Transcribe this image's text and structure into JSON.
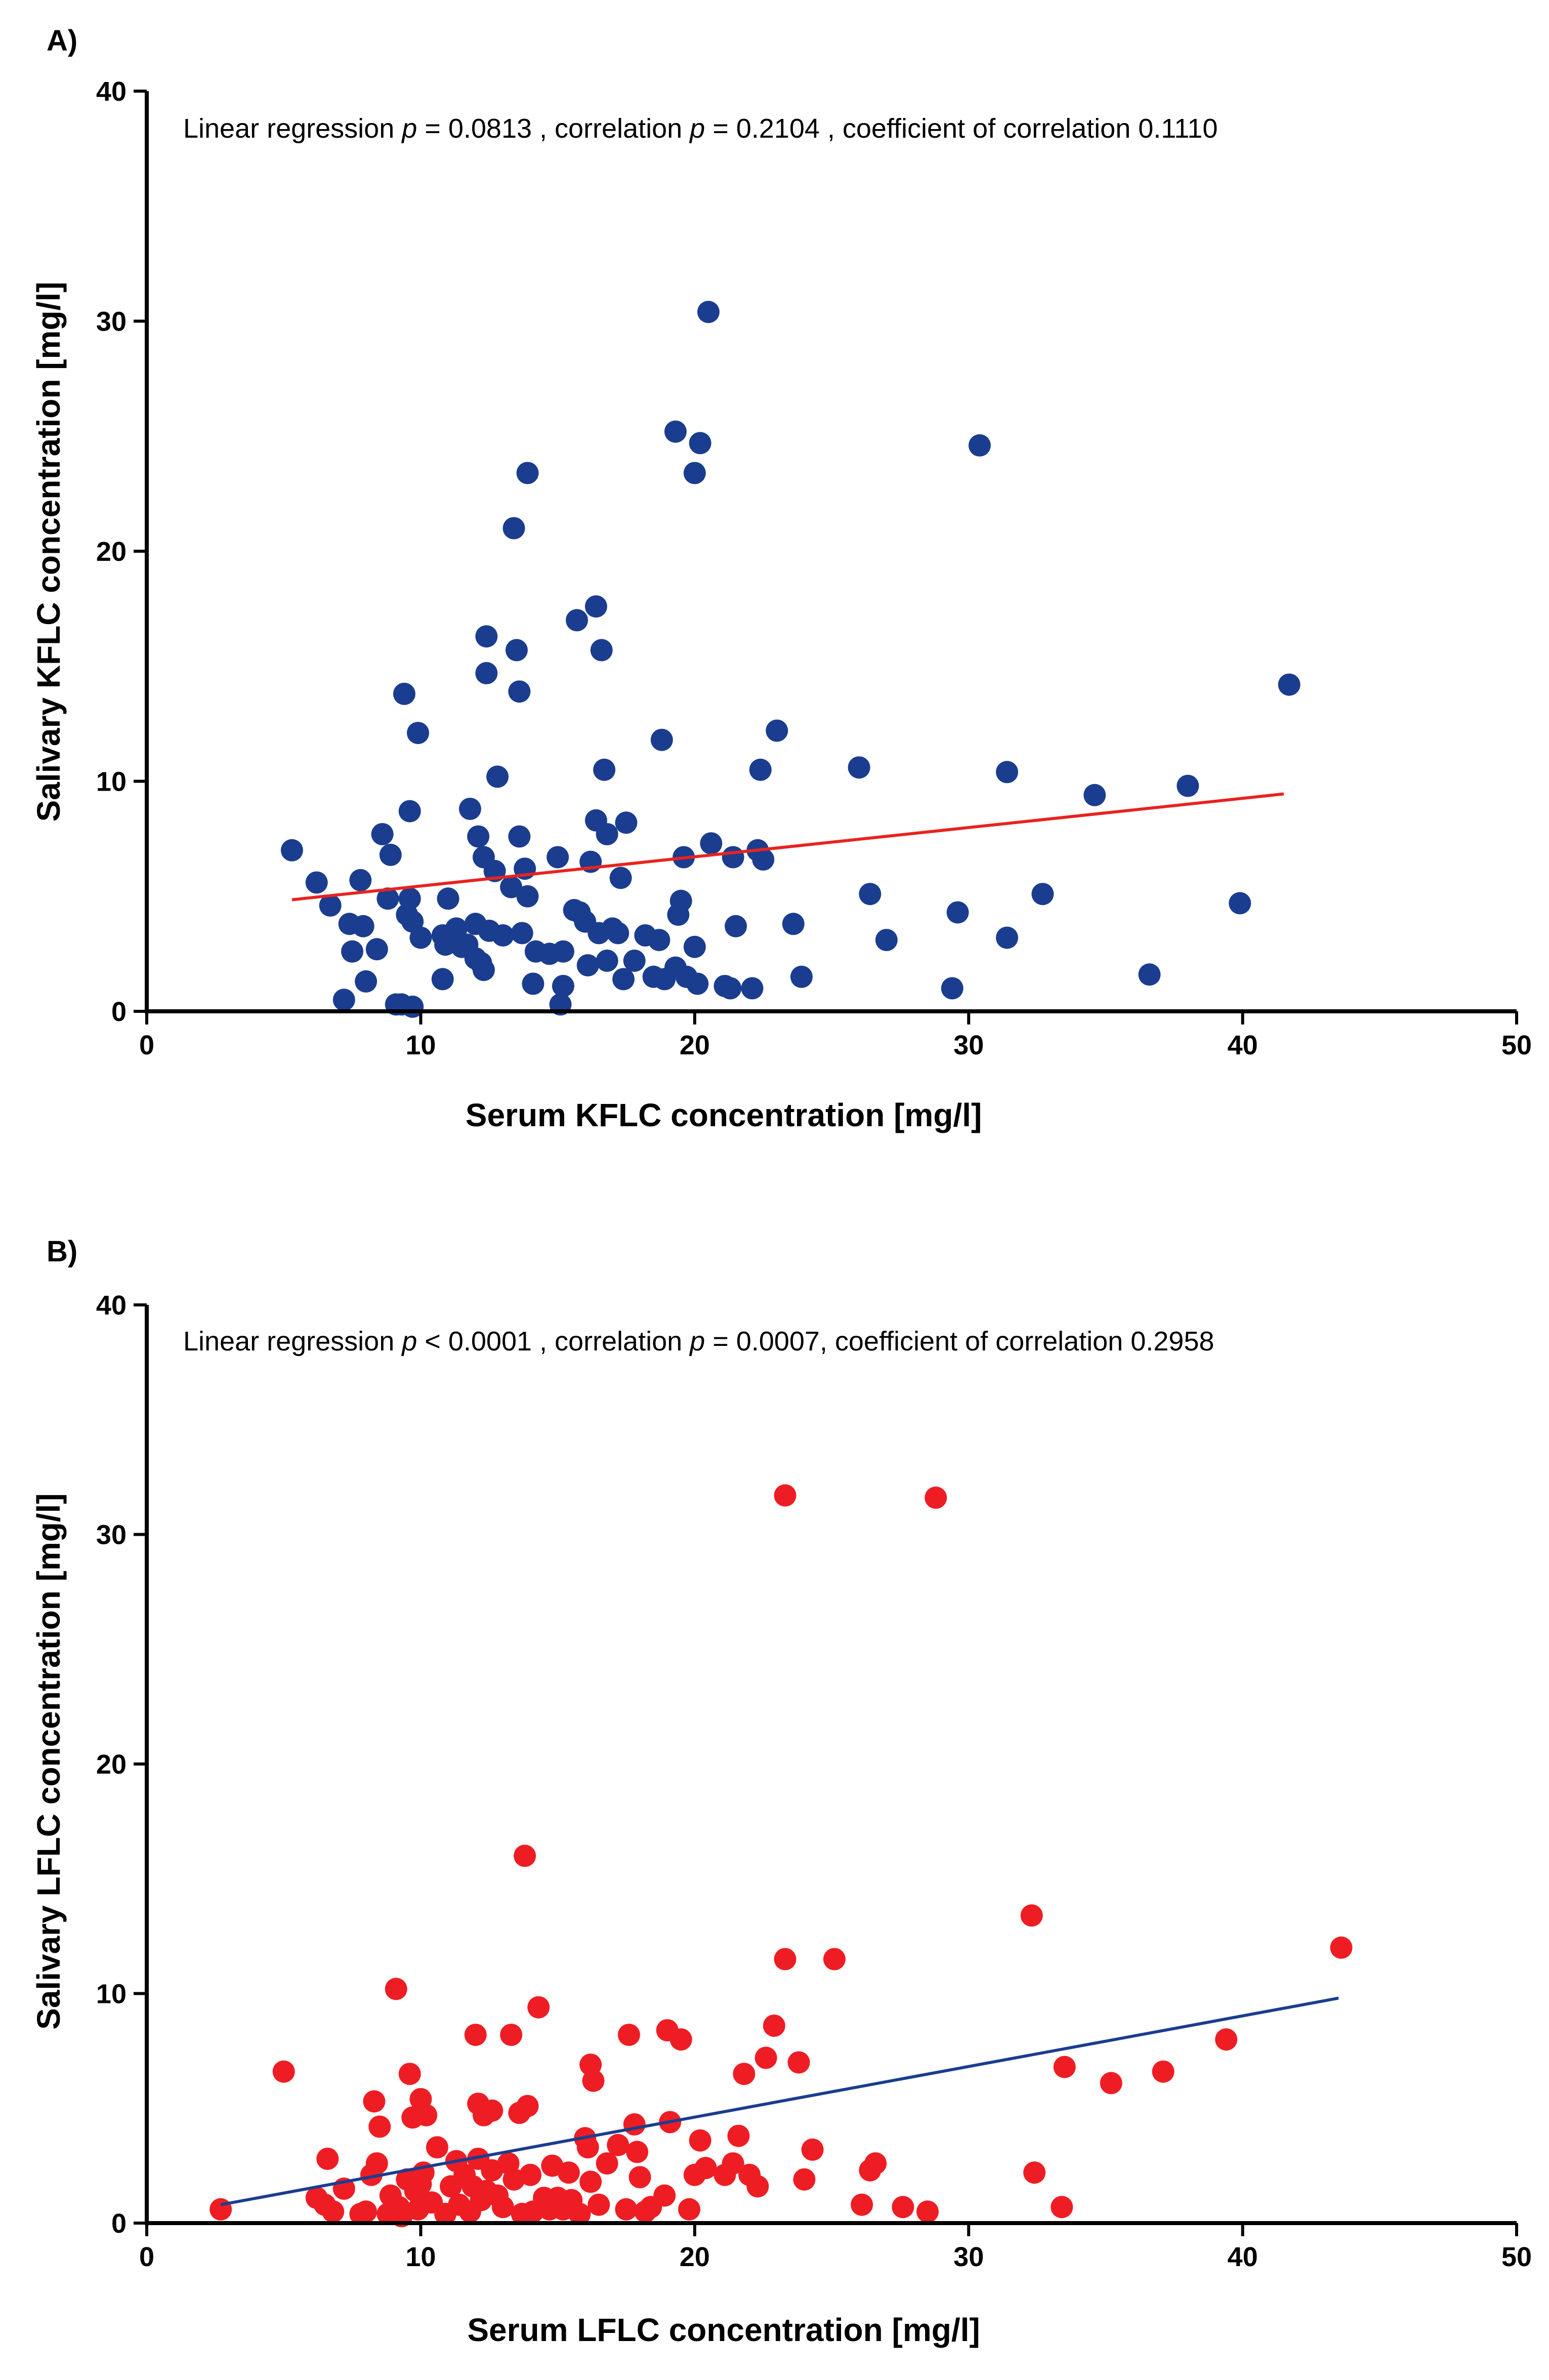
{
  "chart_data": [
    {
      "panel_label": "A)",
      "type": "scatter",
      "xlabel": "Serum KFLC concentration [mg/l]",
      "ylabel": "Salivary KFLC concentration [mg/l]",
      "xlim": [
        0,
        50
      ],
      "ylim": [
        0,
        40
      ],
      "xticks": [
        0,
        10,
        20,
        30,
        40,
        50
      ],
      "yticks": [
        0,
        10,
        20,
        30,
        40
      ],
      "grid": false,
      "annotation": {
        "prefix": "Linear regression ",
        "p1": "p",
        "mid1": " = 0.0813 , correlation ",
        "p2": "p",
        "suffix": " = 0.2104 , coefficient of correlation 0.1110"
      },
      "point_color": "#1b3d8f",
      "line_color": "#e8231f",
      "regression_line": {
        "x": [
          5.3,
          41.5
        ],
        "y": [
          4.85,
          9.45
        ]
      },
      "points": [
        [
          5.3,
          7.0
        ],
        [
          6.2,
          5.6
        ],
        [
          6.7,
          4.6
        ],
        [
          7.2,
          0.5
        ],
        [
          7.4,
          3.8
        ],
        [
          7.5,
          2.6
        ],
        [
          7.8,
          5.7
        ],
        [
          7.9,
          3.7
        ],
        [
          8.0,
          1.3
        ],
        [
          8.4,
          2.7
        ],
        [
          8.6,
          7.7
        ],
        [
          8.8,
          4.9
        ],
        [
          8.9,
          6.8
        ],
        [
          9.1,
          0.3
        ],
        [
          9.3,
          0.3
        ],
        [
          9.4,
          13.8
        ],
        [
          9.5,
          4.2
        ],
        [
          9.6,
          4.9
        ],
        [
          9.6,
          8.7
        ],
        [
          9.7,
          0.2
        ],
        [
          9.7,
          3.9
        ],
        [
          9.9,
          12.1
        ],
        [
          10.0,
          3.2
        ],
        [
          10.8,
          1.4
        ],
        [
          10.8,
          3.3
        ],
        [
          10.9,
          2.9
        ],
        [
          11.0,
          4.9
        ],
        [
          11.3,
          3.6
        ],
        [
          11.5,
          2.8
        ],
        [
          11.7,
          2.9
        ],
        [
          11.8,
          8.8
        ],
        [
          12.0,
          3.8
        ],
        [
          12.0,
          2.3
        ],
        [
          12.1,
          7.6
        ],
        [
          12.2,
          2.1
        ],
        [
          12.3,
          1.8
        ],
        [
          12.3,
          6.7
        ],
        [
          12.4,
          16.3
        ],
        [
          12.4,
          14.7
        ],
        [
          12.5,
          3.5
        ],
        [
          12.7,
          6.1
        ],
        [
          12.8,
          10.2
        ],
        [
          13.0,
          3.3
        ],
        [
          13.3,
          5.4
        ],
        [
          13.4,
          21.0
        ],
        [
          13.5,
          15.7
        ],
        [
          13.6,
          7.6
        ],
        [
          13.6,
          13.9
        ],
        [
          13.7,
          3.4
        ],
        [
          13.8,
          6.2
        ],
        [
          13.9,
          23.4
        ],
        [
          13.9,
          5.0
        ],
        [
          14.1,
          1.2
        ],
        [
          14.2,
          2.6
        ],
        [
          14.7,
          2.5
        ],
        [
          15.0,
          6.7
        ],
        [
          15.1,
          0.3
        ],
        [
          15.2,
          1.1
        ],
        [
          15.2,
          2.6
        ],
        [
          15.6,
          4.4
        ],
        [
          15.7,
          17.0
        ],
        [
          15.8,
          4.3
        ],
        [
          16.0,
          3.9
        ],
        [
          16.1,
          2.0
        ],
        [
          16.2,
          6.5
        ],
        [
          16.4,
          17.6
        ],
        [
          16.4,
          8.3
        ],
        [
          16.5,
          3.4
        ],
        [
          16.6,
          15.7
        ],
        [
          16.7,
          10.5
        ],
        [
          16.8,
          7.7
        ],
        [
          16.8,
          2.2
        ],
        [
          17.0,
          3.6
        ],
        [
          17.2,
          3.4
        ],
        [
          17.3,
          5.8
        ],
        [
          17.4,
          1.4
        ],
        [
          17.5,
          8.2
        ],
        [
          17.8,
          2.2
        ],
        [
          18.2,
          3.3
        ],
        [
          18.5,
          1.5
        ],
        [
          18.7,
          3.1
        ],
        [
          18.8,
          11.8
        ],
        [
          18.9,
          1.4
        ],
        [
          19.3,
          25.2
        ],
        [
          19.3,
          1.9
        ],
        [
          19.4,
          4.2
        ],
        [
          19.5,
          4.8
        ],
        [
          19.6,
          6.7
        ],
        [
          19.7,
          1.5
        ],
        [
          20.0,
          23.4
        ],
        [
          20.0,
          2.8
        ],
        [
          20.1,
          1.2
        ],
        [
          20.2,
          24.7
        ],
        [
          20.5,
          30.4
        ],
        [
          20.6,
          7.3
        ],
        [
          21.1,
          1.1
        ],
        [
          21.3,
          1.0
        ],
        [
          21.4,
          6.7
        ],
        [
          21.5,
          3.7
        ],
        [
          22.1,
          1.0
        ],
        [
          22.3,
          7.0
        ],
        [
          22.4,
          10.5
        ],
        [
          22.5,
          6.6
        ],
        [
          23.0,
          12.2
        ],
        [
          23.6,
          3.8
        ],
        [
          23.9,
          1.5
        ],
        [
          26.0,
          10.6
        ],
        [
          26.4,
          5.1
        ],
        [
          27.0,
          3.1
        ],
        [
          29.4,
          1.0
        ],
        [
          29.6,
          4.3
        ],
        [
          30.4,
          24.6
        ],
        [
          31.4,
          10.4
        ],
        [
          31.4,
          3.2
        ],
        [
          32.7,
          5.1
        ],
        [
          34.6,
          9.4
        ],
        [
          36.6,
          1.6
        ],
        [
          38.0,
          9.8
        ],
        [
          39.9,
          4.7
        ],
        [
          41.7,
          14.2
        ]
      ]
    },
    {
      "panel_label": "B)",
      "type": "scatter",
      "xlabel": "Serum LFLC concentration [mg/l]",
      "ylabel": "Salivary LFLC concentration [mg/l]",
      "xlim": [
        0,
        50
      ],
      "ylim": [
        0,
        40
      ],
      "xticks": [
        0,
        10,
        20,
        30,
        40,
        50
      ],
      "yticks": [
        0,
        10,
        20,
        30,
        40
      ],
      "grid": false,
      "annotation": {
        "prefix": "Linear regression ",
        "p1": "p",
        "mid1": " < 0.0001 , correlation ",
        "p2": "p",
        "suffix": " = 0.0007, coefficient of correlation 0.2958"
      },
      "point_color": "#ee1d24",
      "line_color": "#1b3d8f",
      "regression_line": {
        "x": [
          2.7,
          43.5
        ],
        "y": [
          0.8,
          9.8
        ]
      },
      "points": [
        [
          2.7,
          0.6
        ],
        [
          5.0,
          6.6
        ],
        [
          6.2,
          1.1
        ],
        [
          6.5,
          0.8
        ],
        [
          6.6,
          2.8
        ],
        [
          6.8,
          0.5
        ],
        [
          7.2,
          1.5
        ],
        [
          7.8,
          0.4
        ],
        [
          8.0,
          0.5
        ],
        [
          8.2,
          2.1
        ],
        [
          8.3,
          5.3
        ],
        [
          8.4,
          2.6
        ],
        [
          8.5,
          4.2
        ],
        [
          8.8,
          0.4
        ],
        [
          8.9,
          1.2
        ],
        [
          9.1,
          10.2
        ],
        [
          9.2,
          0.7
        ],
        [
          9.3,
          0.3
        ],
        [
          9.5,
          1.9
        ],
        [
          9.6,
          6.5
        ],
        [
          9.7,
          4.6
        ],
        [
          9.8,
          1.4
        ],
        [
          9.9,
          0.6
        ],
        [
          10.0,
          5.4
        ],
        [
          10.0,
          1.7
        ],
        [
          10.1,
          2.2
        ],
        [
          10.2,
          4.7
        ],
        [
          10.4,
          0.9
        ],
        [
          10.6,
          3.3
        ],
        [
          10.9,
          0.4
        ],
        [
          11.1,
          1.6
        ],
        [
          11.3,
          2.7
        ],
        [
          11.4,
          0.8
        ],
        [
          11.6,
          2.1
        ],
        [
          11.8,
          0.5
        ],
        [
          11.9,
          1.6
        ],
        [
          12.0,
          8.2
        ],
        [
          12.1,
          5.2
        ],
        [
          12.1,
          2.8
        ],
        [
          12.2,
          1.0
        ],
        [
          12.3,
          4.7
        ],
        [
          12.4,
          1.4
        ],
        [
          12.6,
          4.9
        ],
        [
          12.6,
          2.3
        ],
        [
          12.8,
          1.2
        ],
        [
          13.0,
          0.7
        ],
        [
          13.2,
          2.6
        ],
        [
          13.3,
          8.2
        ],
        [
          13.4,
          1.9
        ],
        [
          13.6,
          4.8
        ],
        [
          13.7,
          0.4
        ],
        [
          13.8,
          16.0
        ],
        [
          13.9,
          5.1
        ],
        [
          14.0,
          2.1
        ],
        [
          14.1,
          0.5
        ],
        [
          14.3,
          9.4
        ],
        [
          14.5,
          1.1
        ],
        [
          14.7,
          0.6
        ],
        [
          14.8,
          2.5
        ],
        [
          15.0,
          1.1
        ],
        [
          15.2,
          0.6
        ],
        [
          15.4,
          2.2
        ],
        [
          15.5,
          1.0
        ],
        [
          15.8,
          0.4
        ],
        [
          16.0,
          3.7
        ],
        [
          16.1,
          3.3
        ],
        [
          16.2,
          1.8
        ],
        [
          16.2,
          6.9
        ],
        [
          16.3,
          6.2
        ],
        [
          16.5,
          0.8
        ],
        [
          16.8,
          2.6
        ],
        [
          17.2,
          3.4
        ],
        [
          17.5,
          0.6
        ],
        [
          17.6,
          8.2
        ],
        [
          17.8,
          4.3
        ],
        [
          17.9,
          3.1
        ],
        [
          18.0,
          2.0
        ],
        [
          18.2,
          0.5
        ],
        [
          18.4,
          0.7
        ],
        [
          18.9,
          1.2
        ],
        [
          19.0,
          8.4
        ],
        [
          19.1,
          4.4
        ],
        [
          19.5,
          8.0
        ],
        [
          19.8,
          0.6
        ],
        [
          20.0,
          2.1
        ],
        [
          20.2,
          3.6
        ],
        [
          20.4,
          2.4
        ],
        [
          21.1,
          2.1
        ],
        [
          21.4,
          2.6
        ],
        [
          21.6,
          3.8
        ],
        [
          21.8,
          6.5
        ],
        [
          22.0,
          2.1
        ],
        [
          22.3,
          1.6
        ],
        [
          22.6,
          7.2
        ],
        [
          22.9,
          8.6
        ],
        [
          23.3,
          31.7
        ],
        [
          23.3,
          11.5
        ],
        [
          23.8,
          7.0
        ],
        [
          24.0,
          1.9
        ],
        [
          24.3,
          3.2
        ],
        [
          25.1,
          11.5
        ],
        [
          26.1,
          0.8
        ],
        [
          26.4,
          2.3
        ],
        [
          26.6,
          2.6
        ],
        [
          27.6,
          0.7
        ],
        [
          28.5,
          0.5
        ],
        [
          28.8,
          31.6
        ],
        [
          32.3,
          13.4
        ],
        [
          32.4,
          2.2
        ],
        [
          33.4,
          0.7
        ],
        [
          33.5,
          6.8
        ],
        [
          35.2,
          6.1
        ],
        [
          37.1,
          6.6
        ],
        [
          39.4,
          8.0
        ],
        [
          43.6,
          12.0
        ]
      ]
    }
  ]
}
